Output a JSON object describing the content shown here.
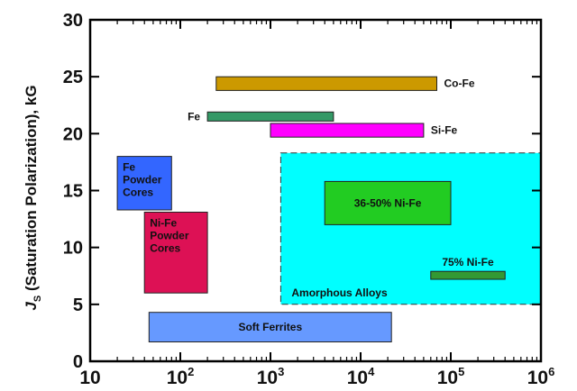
{
  "chart_data": {
    "type": "range_bar",
    "title": "",
    "xlabel": "",
    "ylabel": {
      "symbol": "J",
      "subscript": "S",
      "text": " (Saturation Polarization), kG"
    },
    "xscale": "log",
    "xlim": [
      10,
      1000000
    ],
    "ylim": [
      0,
      30
    ],
    "xticks": [
      {
        "value": 10,
        "base": "10",
        "exp": ""
      },
      {
        "value": 100,
        "base": "10",
        "exp": "2"
      },
      {
        "value": 1000,
        "base": "10",
        "exp": "3"
      },
      {
        "value": 10000,
        "base": "10",
        "exp": "4"
      },
      {
        "value": 100000,
        "base": "10",
        "exp": "5"
      },
      {
        "value": 1000000,
        "base": "10",
        "exp": "6"
      }
    ],
    "yticks": [
      0,
      5,
      10,
      15,
      20,
      25,
      30
    ],
    "regions": [
      {
        "name": "Amorphous Alloys",
        "lines": [
          "Amorphous Alloys"
        ],
        "x": [
          1300,
          1000000
        ],
        "y": [
          5,
          18.3
        ],
        "color": "#00ffff",
        "border": "dashed",
        "label_pos": "bottom-left"
      },
      {
        "name": "Co-Fe",
        "lines": [
          "Co-Fe"
        ],
        "x": [
          250,
          70000
        ],
        "y": [
          23.8,
          25
        ],
        "color": "#cc9900",
        "label_pos": "right"
      },
      {
        "name": "Fe",
        "lines": [
          "Fe"
        ],
        "x": [
          200,
          5000
        ],
        "y": [
          21.1,
          21.9
        ],
        "color": "#339966",
        "label_pos": "left"
      },
      {
        "name": "Si-Fe",
        "lines": [
          "Si-Fe"
        ],
        "x": [
          1000,
          50000
        ],
        "y": [
          19.7,
          20.9
        ],
        "color": "#ff00ff",
        "label_pos": "right"
      },
      {
        "name": "Fe Powder Cores",
        "lines": [
          "Fe",
          "Powder",
          "Cores"
        ],
        "x": [
          20,
          80
        ],
        "y": [
          13.3,
          18
        ],
        "color": "#3366ff",
        "label_pos": "inside"
      },
      {
        "name": "Ni-Fe Powder Cores",
        "lines": [
          "Ni-Fe",
          "Powder",
          "Cores"
        ],
        "x": [
          40,
          200
        ],
        "y": [
          6,
          13.1
        ],
        "color": "#dd1155",
        "label_pos": "inside"
      },
      {
        "name": "36-50% Ni-Fe",
        "lines": [
          "36-50% Ni-Fe"
        ],
        "x": [
          4000,
          100000
        ],
        "y": [
          12,
          15.8
        ],
        "color": "#22cc22",
        "label_pos": "center"
      },
      {
        "name": "75% Ni-Fe",
        "lines": [
          "75% Ni-Fe"
        ],
        "x": [
          60000,
          400000
        ],
        "y": [
          7.2,
          7.9
        ],
        "color": "#339933",
        "label_pos": "above"
      },
      {
        "name": "Soft Ferrites",
        "lines": [
          "Soft Ferrites"
        ],
        "x": [
          45,
          22000
        ],
        "y": [
          1.7,
          4.3
        ],
        "color": "#6699ff",
        "label_pos": "center"
      }
    ]
  }
}
